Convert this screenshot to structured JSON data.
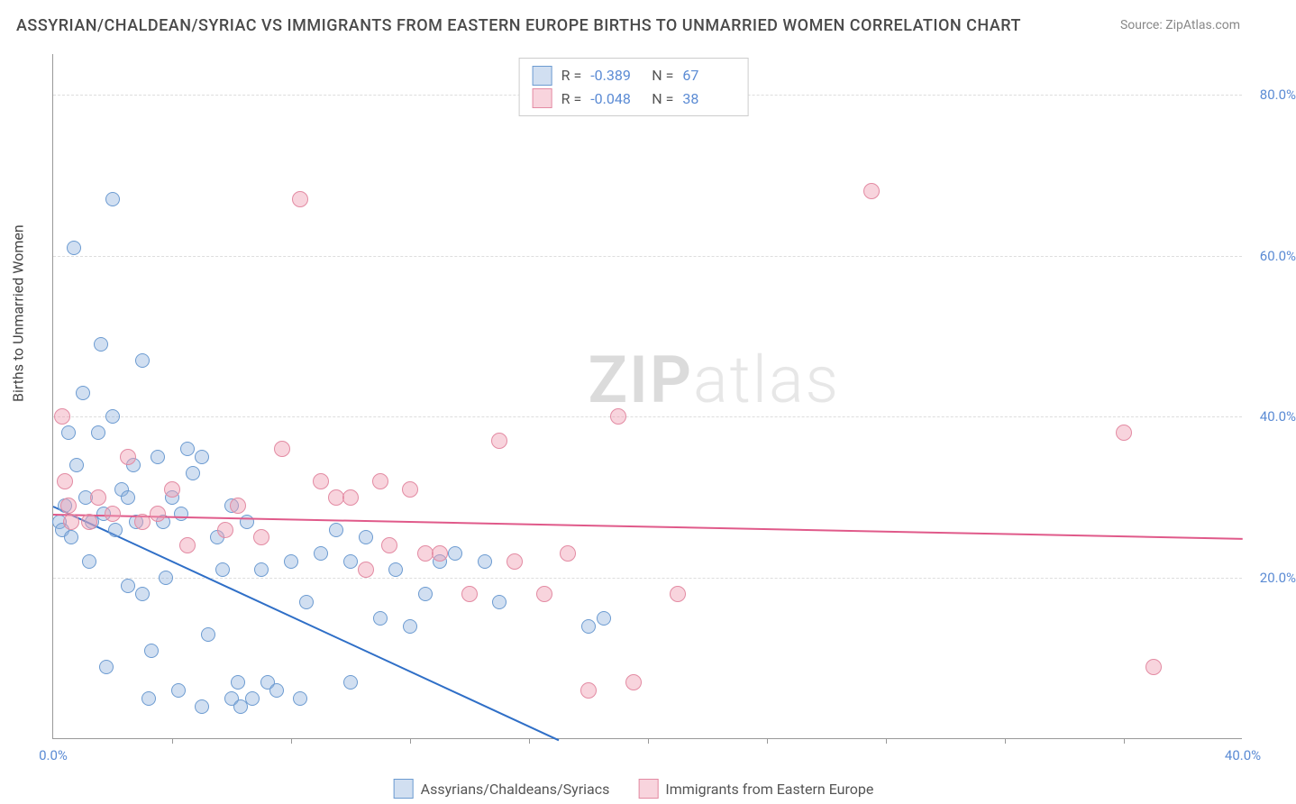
{
  "title": "ASSYRIAN/CHALDEAN/SYRIAC VS IMMIGRANTS FROM EASTERN EUROPE BIRTHS TO UNMARRIED WOMEN CORRELATION CHART",
  "source": "Source: ZipAtlas.com",
  "ylabel": "Births to Unmarried Women",
  "watermark": {
    "a": "ZIP",
    "b": "atlas"
  },
  "xlim": [
    0,
    40
  ],
  "ylim": [
    0,
    85
  ],
  "yticks": [
    {
      "v": 20,
      "l": "20.0%"
    },
    {
      "v": 40,
      "l": "40.0%"
    },
    {
      "v": 60,
      "l": "60.0%"
    },
    {
      "v": 80,
      "l": "80.0%"
    }
  ],
  "xticks": [
    {
      "v": 0,
      "l": "0.0%"
    },
    {
      "v": 40,
      "l": "40.0%"
    }
  ],
  "xtick_marks": [
    4,
    8,
    12,
    16,
    20,
    24,
    28,
    32,
    36
  ],
  "grid_color": "#ddd",
  "series": [
    {
      "name": "Assyrians/Chaldeans/Syriacs",
      "fill": "rgba(140,175,220,0.4)",
      "stroke": "#6c9bd1",
      "r": 8,
      "R": "-0.389",
      "N": "67",
      "line": {
        "x1": 0,
        "y1": 29,
        "x2": 17,
        "y2": 0,
        "color": "#2f6fc7",
        "w": 2
      },
      "points": [
        [
          0.2,
          27
        ],
        [
          0.3,
          26
        ],
        [
          0.4,
          29
        ],
        [
          0.5,
          38
        ],
        [
          0.6,
          25
        ],
        [
          0.7,
          61
        ],
        [
          0.8,
          34
        ],
        [
          1.0,
          43
        ],
        [
          1.1,
          30
        ],
        [
          1.2,
          22
        ],
        [
          1.3,
          27
        ],
        [
          1.5,
          38
        ],
        [
          1.6,
          49
        ],
        [
          1.7,
          28
        ],
        [
          1.8,
          9
        ],
        [
          2.0,
          40
        ],
        [
          2.0,
          67
        ],
        [
          2.1,
          26
        ],
        [
          2.3,
          31
        ],
        [
          2.5,
          30
        ],
        [
          2.5,
          19
        ],
        [
          2.7,
          34
        ],
        [
          2.8,
          27
        ],
        [
          3.0,
          47
        ],
        [
          3.0,
          18
        ],
        [
          3.2,
          5
        ],
        [
          3.3,
          11
        ],
        [
          3.5,
          35
        ],
        [
          3.7,
          27
        ],
        [
          3.8,
          20
        ],
        [
          4.0,
          30
        ],
        [
          4.2,
          6
        ],
        [
          4.3,
          28
        ],
        [
          4.5,
          36
        ],
        [
          4.7,
          33
        ],
        [
          5.0,
          4
        ],
        [
          5.0,
          35
        ],
        [
          5.2,
          13
        ],
        [
          5.5,
          25
        ],
        [
          5.7,
          21
        ],
        [
          6.0,
          29
        ],
        [
          6.0,
          5
        ],
        [
          6.2,
          7
        ],
        [
          6.3,
          4
        ],
        [
          6.5,
          27
        ],
        [
          6.7,
          5
        ],
        [
          7.0,
          21
        ],
        [
          7.2,
          7
        ],
        [
          7.5,
          6
        ],
        [
          8.0,
          22
        ],
        [
          8.3,
          5
        ],
        [
          8.5,
          17
        ],
        [
          9.0,
          23
        ],
        [
          9.5,
          26
        ],
        [
          10.0,
          22
        ],
        [
          10.0,
          7
        ],
        [
          10.5,
          25
        ],
        [
          11.0,
          15
        ],
        [
          11.5,
          21
        ],
        [
          12.0,
          14
        ],
        [
          12.5,
          18
        ],
        [
          13.0,
          22
        ],
        [
          13.5,
          23
        ],
        [
          14.5,
          22
        ],
        [
          15.0,
          17
        ],
        [
          18.0,
          14
        ],
        [
          18.5,
          15
        ]
      ]
    },
    {
      "name": "Immigrants from Eastern Europe",
      "fill": "rgba(240,160,180,0.45)",
      "stroke": "#e38ba3",
      "r": 9,
      "R": "-0.048",
      "N": "38",
      "line": {
        "x1": 0,
        "y1": 28,
        "x2": 40,
        "y2": 25,
        "color": "#e05a8a",
        "w": 2
      },
      "points": [
        [
          0.3,
          40
        ],
        [
          0.4,
          32
        ],
        [
          0.5,
          29
        ],
        [
          0.6,
          27
        ],
        [
          1.2,
          27
        ],
        [
          1.5,
          30
        ],
        [
          2.0,
          28
        ],
        [
          2.5,
          35
        ],
        [
          3.0,
          27
        ],
        [
          3.5,
          28
        ],
        [
          4.0,
          31
        ],
        [
          4.5,
          24
        ],
        [
          5.8,
          26
        ],
        [
          6.2,
          29
        ],
        [
          7.0,
          25
        ],
        [
          7.7,
          36
        ],
        [
          8.3,
          67
        ],
        [
          9.0,
          32
        ],
        [
          9.5,
          30
        ],
        [
          10.0,
          30
        ],
        [
          10.5,
          21
        ],
        [
          11.0,
          32
        ],
        [
          11.3,
          24
        ],
        [
          12.0,
          31
        ],
        [
          12.5,
          23
        ],
        [
          13.0,
          23
        ],
        [
          14.0,
          18
        ],
        [
          15.0,
          37
        ],
        [
          15.5,
          22
        ],
        [
          16.5,
          18
        ],
        [
          17.3,
          23
        ],
        [
          18.0,
          6
        ],
        [
          19.0,
          40
        ],
        [
          19.5,
          7
        ],
        [
          21.0,
          18
        ],
        [
          27.5,
          68
        ],
        [
          36.0,
          38
        ],
        [
          37.0,
          9
        ]
      ]
    }
  ],
  "stat_labels": {
    "R": "R  =",
    "N": "N  ="
  },
  "legend_items": [
    "Assyrians/Chaldeans/Syriacs",
    "Immigrants from Eastern Europe"
  ]
}
